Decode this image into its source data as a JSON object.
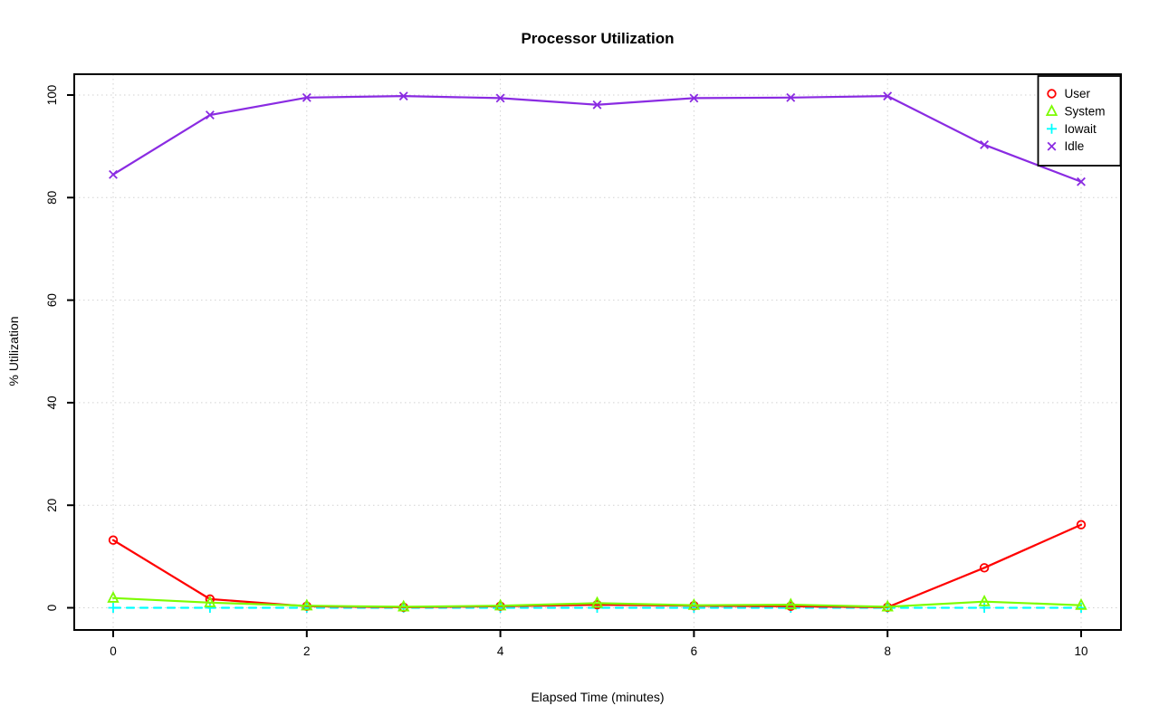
{
  "chart_data": {
    "type": "line",
    "title": "Processor Utilization",
    "xlabel": "Elapsed Time (minutes)",
    "ylabel": "% Utilization",
    "x": [
      0,
      1,
      2,
      3,
      4,
      5,
      6,
      7,
      8,
      9,
      10
    ],
    "series": [
      {
        "name": "User",
        "color": "#ff0000",
        "marker": "circle",
        "line": "solid",
        "values": [
          13.2,
          1.7,
          0.3,
          0.1,
          0.3,
          0.6,
          0.4,
          0.3,
          0.1,
          7.8,
          16.2
        ]
      },
      {
        "name": "System",
        "color": "#7cfc00",
        "marker": "triangle",
        "line": "solid",
        "values": [
          1.9,
          1.0,
          0.4,
          0.2,
          0.4,
          0.9,
          0.5,
          0.6,
          0.2,
          1.2,
          0.5
        ]
      },
      {
        "name": "Iowait",
        "color": "#00ffff",
        "marker": "plus",
        "line": "dashed",
        "values": [
          0,
          0,
          0,
          0,
          0,
          0,
          0,
          0,
          0,
          0,
          0
        ]
      },
      {
        "name": "Idle",
        "color": "#8a2be2",
        "marker": "x",
        "line": "solid",
        "values": [
          84.5,
          96.1,
          99.5,
          99.8,
          99.4,
          98.1,
          99.4,
          99.5,
          99.8,
          90.3,
          83.1
        ]
      }
    ],
    "x_ticks": [
      0,
      2,
      4,
      6,
      8,
      10
    ],
    "y_ticks": [
      0,
      20,
      40,
      60,
      80,
      100
    ],
    "xlim": [
      0,
      10
    ],
    "ylim": [
      0,
      100
    ],
    "grid": true,
    "legend_position": "top-right",
    "colors": {
      "grid": "#d2d2d2",
      "axis": "#000000",
      "background": "#ffffff"
    }
  }
}
